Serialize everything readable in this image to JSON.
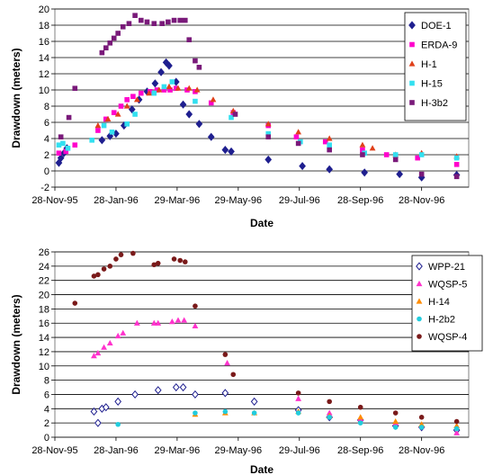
{
  "chart_data": [
    {
      "type": "scatter",
      "title": "",
      "xlabel": "Date",
      "ylabel": "Drawdown (meters)",
      "ylim": [
        -2,
        20
      ],
      "ytick_step": 2,
      "xticks": [
        "1995-11-28",
        "1996-01-28",
        "1996-03-29",
        "1996-05-29",
        "1996-07-29",
        "1996-09-28",
        "1996-11-28"
      ],
      "xtick_labels": [
        "28-Nov-95",
        "28-Jan-96",
        "29-Mar-96",
        "29-May-96",
        "29-Jul-96",
        "28-Sep-96",
        "28-Nov-96"
      ],
      "xlim": [
        "1995-11-28",
        "1997-01-14"
      ],
      "grid": "horizontal",
      "legend_position": "top-right",
      "series": [
        {
          "name": "DOE-1",
          "color": "#1f1f8f",
          "marker": "diamond",
          "points": [
            [
              "1995-12-02",
              1.0
            ],
            [
              "1995-12-04",
              1.6
            ],
            [
              "1995-12-07",
              2.2
            ],
            [
              "1995-12-10",
              2.8
            ],
            [
              "1996-01-14",
              3.8
            ],
            [
              "1996-01-22",
              4.3
            ],
            [
              "1996-01-28",
              4.6
            ],
            [
              "1996-02-05",
              5.6
            ],
            [
              "1996-02-13",
              7.6
            ],
            [
              "1996-02-20",
              8.8
            ],
            [
              "1996-02-28",
              9.8
            ],
            [
              "1996-03-07",
              10.8
            ],
            [
              "1996-03-13",
              12.2
            ],
            [
              "1996-03-18",
              13.4
            ],
            [
              "1996-03-21",
              13.0
            ],
            [
              "1996-03-28",
              11.0
            ],
            [
              "1996-04-04",
              8.2
            ],
            [
              "1996-04-10",
              7.0
            ],
            [
              "1996-04-20",
              5.8
            ],
            [
              "1996-05-02",
              4.2
            ],
            [
              "1996-05-16",
              2.6
            ],
            [
              "1996-05-22",
              2.4
            ],
            [
              "1996-06-28",
              1.4
            ],
            [
              "1996-08-01",
              0.6
            ],
            [
              "1996-08-28",
              0.2
            ],
            [
              "1996-10-02",
              -0.2
            ],
            [
              "1996-11-06",
              -0.4
            ],
            [
              "1996-11-28",
              -0.8
            ],
            [
              "1997-01-02",
              -0.5
            ]
          ]
        },
        {
          "name": "ERDA-9",
          "color": "#ff00cc",
          "marker": "square",
          "points": [
            [
              "1995-12-02",
              2.2
            ],
            [
              "1995-12-09",
              2.4
            ],
            [
              "1995-12-18",
              3.2
            ],
            [
              "1996-01-10",
              5.0
            ],
            [
              "1996-01-18",
              6.4
            ],
            [
              "1996-01-26",
              7.2
            ],
            [
              "1996-02-02",
              8.0
            ],
            [
              "1996-02-08",
              8.8
            ],
            [
              "1996-02-14",
              9.2
            ],
            [
              "1996-02-22",
              9.6
            ],
            [
              "1996-03-02",
              9.8
            ],
            [
              "1996-03-09",
              10.0
            ],
            [
              "1996-03-16",
              10.0
            ],
            [
              "1996-03-22",
              10.0
            ],
            [
              "1996-03-28",
              10.2
            ],
            [
              "1996-04-08",
              10.0
            ],
            [
              "1996-04-16",
              9.8
            ],
            [
              "1996-05-02",
              8.4
            ],
            [
              "1996-05-24",
              7.2
            ],
            [
              "1996-06-28",
              5.6
            ],
            [
              "1996-07-26",
              4.2
            ],
            [
              "1996-08-24",
              3.6
            ],
            [
              "1996-09-30",
              2.6
            ],
            [
              "1996-10-24",
              2.0
            ],
            [
              "1996-11-24",
              1.6
            ],
            [
              "1997-01-02",
              0.8
            ]
          ]
        },
        {
          "name": "H-1",
          "color": "#e0401a",
          "marker": "triangle",
          "points": [
            [
              "1996-01-10",
              5.6
            ],
            [
              "1996-01-20",
              6.4
            ],
            [
              "1996-01-30",
              7.0
            ],
            [
              "1996-02-08",
              8.0
            ],
            [
              "1996-02-18",
              8.8
            ],
            [
              "1996-03-01",
              9.6
            ],
            [
              "1996-03-11",
              10.0
            ],
            [
              "1996-03-21",
              10.4
            ],
            [
              "1996-03-30",
              10.2
            ],
            [
              "1996-04-10",
              10.2
            ],
            [
              "1996-04-18",
              10.0
            ],
            [
              "1996-05-04",
              8.8
            ],
            [
              "1996-05-24",
              7.4
            ],
            [
              "1996-06-28",
              5.8
            ],
            [
              "1996-07-28",
              4.8
            ],
            [
              "1996-08-28",
              4.0
            ],
            [
              "1996-09-30",
              3.2
            ],
            [
              "1996-10-10",
              2.8
            ],
            [
              "1996-11-02",
              2.0
            ],
            [
              "1996-11-28",
              2.2
            ],
            [
              "1997-01-02",
              1.8
            ]
          ]
        },
        {
          "name": "H-15",
          "color": "#33e0f0",
          "marker": "square",
          "points": [
            [
              "1995-12-02",
              3.2
            ],
            [
              "1995-12-06",
              3.4
            ],
            [
              "1995-12-11",
              2.8
            ],
            [
              "1996-01-04",
              3.8
            ],
            [
              "1996-01-16",
              5.6
            ],
            [
              "1996-01-24",
              4.8
            ],
            [
              "1996-02-08",
              5.8
            ],
            [
              "1996-02-16",
              7.0
            ],
            [
              "1996-03-06",
              9.6
            ],
            [
              "1996-03-16",
              10.4
            ],
            [
              "1996-03-24",
              11.0
            ],
            [
              "1996-04-16",
              8.6
            ],
            [
              "1996-05-22",
              6.6
            ],
            [
              "1996-06-28",
              4.6
            ],
            [
              "1996-07-30",
              3.6
            ],
            [
              "1996-08-28",
              3.2
            ],
            [
              "1996-10-02",
              2.2
            ],
            [
              "1996-11-02",
              2.0
            ],
            [
              "1996-11-28",
              2.0
            ],
            [
              "1997-01-02",
              1.6
            ]
          ]
        },
        {
          "name": "H-3b2",
          "color": "#7a1a7a",
          "marker": "square",
          "points": [
            [
              "1995-12-04",
              4.2
            ],
            [
              "1995-12-12",
              6.6
            ],
            [
              "1995-12-18",
              10.2
            ],
            [
              "1996-01-14",
              14.6
            ],
            [
              "1996-01-18",
              15.2
            ],
            [
              "1996-01-22",
              15.8
            ],
            [
              "1996-01-26",
              16.4
            ],
            [
              "1996-01-30",
              17.0
            ],
            [
              "1996-02-04",
              17.8
            ],
            [
              "1996-02-10",
              18.2
            ],
            [
              "1996-02-16",
              19.2
            ],
            [
              "1996-02-22",
              18.6
            ],
            [
              "1996-02-28",
              18.4
            ],
            [
              "1996-03-06",
              18.2
            ],
            [
              "1996-03-14",
              18.2
            ],
            [
              "1996-03-20",
              18.4
            ],
            [
              "1996-03-26",
              18.6
            ],
            [
              "1996-04-01",
              18.6
            ],
            [
              "1996-04-06",
              18.6
            ],
            [
              "1996-04-10",
              16.2
            ],
            [
              "1996-04-16",
              13.6
            ],
            [
              "1996-04-20",
              12.8
            ],
            [
              "1996-05-26",
              7.0
            ],
            [
              "1996-06-28",
              4.2
            ],
            [
              "1996-07-28",
              3.4
            ],
            [
              "1996-08-28",
              2.6
            ],
            [
              "1996-09-30",
              2.0
            ],
            [
              "1996-11-02",
              1.4
            ],
            [
              "1996-11-28",
              -0.4
            ],
            [
              "1997-01-02",
              -0.7
            ]
          ]
        }
      ]
    },
    {
      "type": "scatter",
      "title": "",
      "xlabel": "Date",
      "ylabel": "Drawdown (meters)",
      "ylim": [
        0,
        26
      ],
      "ytick_step": 2,
      "xticks": [
        "1995-11-28",
        "1996-01-28",
        "1996-03-29",
        "1996-05-29",
        "1996-07-29",
        "1996-09-28",
        "1996-11-28"
      ],
      "xtick_labels": [
        "28-Nov-95",
        "28-Jan-96",
        "29-Mar-96",
        "29-May-96",
        "29-Jul-96",
        "28-Sep-96",
        "28-Nov-96"
      ],
      "xlim": [
        "1995-11-28",
        "1997-01-14"
      ],
      "grid": "horizontal",
      "legend_position": "top-right",
      "series": [
        {
          "name": "WPP-21",
          "color": "#1f1f8f",
          "marker": "diamond-open",
          "points": [
            [
              "1996-01-06",
              3.6
            ],
            [
              "1996-01-10",
              2.0
            ],
            [
              "1996-01-14",
              4.0
            ],
            [
              "1996-01-18",
              4.2
            ],
            [
              "1996-01-30",
              5.0
            ],
            [
              "1996-02-16",
              6.0
            ],
            [
              "1996-03-10",
              6.6
            ],
            [
              "1996-03-28",
              7.0
            ],
            [
              "1996-04-04",
              7.0
            ],
            [
              "1996-04-16",
              6.0
            ],
            [
              "1996-05-16",
              6.2
            ],
            [
              "1996-06-14",
              5.0
            ],
            [
              "1996-07-28",
              3.8
            ],
            [
              "1996-08-28",
              2.8
            ],
            [
              "1996-09-28",
              2.4
            ],
            [
              "1996-11-02",
              1.6
            ],
            [
              "1996-11-28",
              1.4
            ],
            [
              "1997-01-02",
              1.0
            ]
          ]
        },
        {
          "name": "WQSP-5",
          "color": "#ff33cc",
          "marker": "triangle",
          "points": [
            [
              "1996-01-06",
              11.4
            ],
            [
              "1996-01-10",
              11.8
            ],
            [
              "1996-01-16",
              12.6
            ],
            [
              "1996-01-22",
              13.2
            ],
            [
              "1996-01-30",
              14.2
            ],
            [
              "1996-02-04",
              14.6
            ],
            [
              "1996-02-18",
              16.0
            ],
            [
              "1996-03-06",
              16.0
            ],
            [
              "1996-03-10",
              16.0
            ],
            [
              "1996-03-24",
              16.2
            ],
            [
              "1996-03-30",
              16.4
            ],
            [
              "1996-04-05",
              16.4
            ],
            [
              "1996-04-16",
              15.6
            ],
            [
              "1996-05-18",
              10.4
            ],
            [
              "1996-07-28",
              5.4
            ],
            [
              "1996-08-28",
              3.4
            ],
            [
              "1996-09-28",
              2.6
            ],
            [
              "1996-11-02",
              2.0
            ],
            [
              "1996-11-28",
              1.6
            ],
            [
              "1997-01-02",
              0.6
            ]
          ]
        },
        {
          "name": "H-14",
          "color": "#ff8c00",
          "marker": "triangle",
          "points": [
            [
              "1996-04-16",
              3.2
            ],
            [
              "1996-05-16",
              3.4
            ],
            [
              "1996-06-14",
              3.4
            ],
            [
              "1996-07-28",
              3.6
            ],
            [
              "1996-08-28",
              3.0
            ],
            [
              "1996-09-28",
              2.8
            ],
            [
              "1996-11-02",
              2.2
            ],
            [
              "1996-11-28",
              1.8
            ],
            [
              "1997-01-02",
              1.6
            ]
          ]
        },
        {
          "name": "H-2b2",
          "color": "#22ccdd",
          "marker": "circle",
          "points": [
            [
              "1996-01-30",
              1.8
            ],
            [
              "1996-04-16",
              3.4
            ],
            [
              "1996-05-16",
              3.6
            ],
            [
              "1996-06-14",
              3.4
            ],
            [
              "1996-07-28",
              3.4
            ],
            [
              "1996-08-28",
              2.8
            ],
            [
              "1996-09-28",
              2.0
            ],
            [
              "1996-11-02",
              1.4
            ],
            [
              "1996-11-28",
              1.4
            ],
            [
              "1997-01-02",
              1.2
            ]
          ]
        },
        {
          "name": "WQSP-4",
          "color": "#7a1a1a",
          "marker": "circle",
          "points": [
            [
              "1995-12-18",
              18.8
            ],
            [
              "1996-01-06",
              22.6
            ],
            [
              "1996-01-10",
              22.8
            ],
            [
              "1996-01-16",
              23.6
            ],
            [
              "1996-01-22",
              24.0
            ],
            [
              "1996-01-28",
              25.0
            ],
            [
              "1996-02-02",
              25.6
            ],
            [
              "1996-02-14",
              25.8
            ],
            [
              "1996-03-06",
              24.2
            ],
            [
              "1996-03-10",
              24.4
            ],
            [
              "1996-03-26",
              25.0
            ],
            [
              "1996-04-01",
              24.8
            ],
            [
              "1996-04-06",
              24.6
            ],
            [
              "1996-04-16",
              18.4
            ],
            [
              "1996-05-16",
              11.6
            ],
            [
              "1996-05-24",
              8.8
            ],
            [
              "1996-07-28",
              6.2
            ],
            [
              "1996-08-28",
              5.0
            ],
            [
              "1996-09-28",
              4.2
            ],
            [
              "1996-11-02",
              3.4
            ],
            [
              "1996-11-28",
              2.8
            ],
            [
              "1997-01-02",
              2.2
            ]
          ]
        }
      ]
    }
  ]
}
